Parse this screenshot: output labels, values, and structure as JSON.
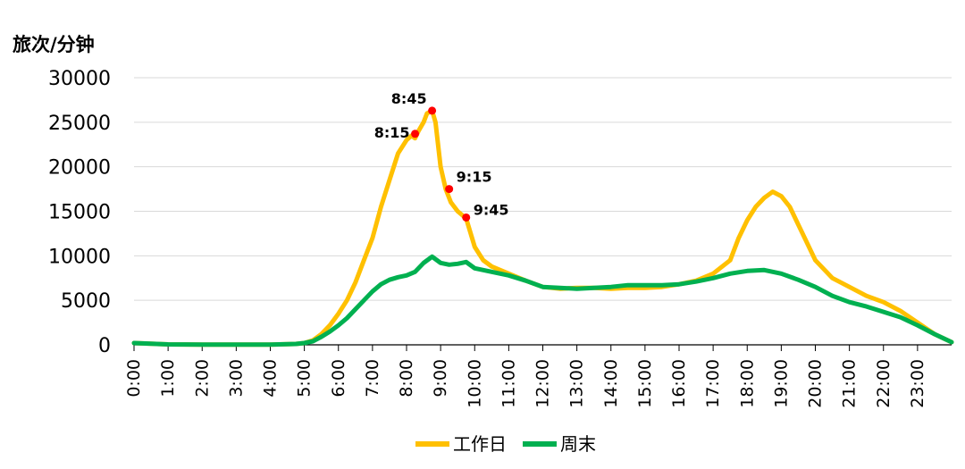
{
  "chart_data": {
    "type": "line",
    "ylabel": "旅次/分钟",
    "xlabel": "",
    "ylim": [
      0,
      30000
    ],
    "yticks": [
      0,
      5000,
      10000,
      15000,
      20000,
      25000,
      30000
    ],
    "xlim": [
      0,
      24
    ],
    "xticks": [
      "0:00",
      "1:00",
      "2:00",
      "3:00",
      "4:00",
      "5:00",
      "6:00",
      "7:00",
      "8:00",
      "9:00",
      "10:00",
      "11:00",
      "12:00",
      "13:00",
      "14:00",
      "15:00",
      "16:00",
      "17:00",
      "18:00",
      "19:00",
      "20:00",
      "21:00",
      "22:00",
      "23:00"
    ],
    "grid": true,
    "legend_position": "bottom",
    "series": [
      {
        "name": "工作日",
        "color": "#FFC000",
        "points": [
          [
            0,
            200
          ],
          [
            1,
            50
          ],
          [
            2,
            20
          ],
          [
            3,
            20
          ],
          [
            4,
            30
          ],
          [
            4.75,
            100
          ],
          [
            5,
            200
          ],
          [
            5.25,
            500
          ],
          [
            5.5,
            1200
          ],
          [
            5.75,
            2200
          ],
          [
            6,
            3500
          ],
          [
            6.25,
            5000
          ],
          [
            6.5,
            7000
          ],
          [
            6.75,
            9500
          ],
          [
            7,
            12000
          ],
          [
            7.25,
            15500
          ],
          [
            7.5,
            18500
          ],
          [
            7.75,
            21500
          ],
          [
            8,
            23000
          ],
          [
            8.15,
            23500
          ],
          [
            8.25,
            23200
          ],
          [
            8.35,
            24000
          ],
          [
            8.5,
            25000
          ],
          [
            8.6,
            26000
          ],
          [
            8.75,
            26300
          ],
          [
            8.85,
            25000
          ],
          [
            9,
            20000
          ],
          [
            9.15,
            17500
          ],
          [
            9.3,
            16000
          ],
          [
            9.5,
            15000
          ],
          [
            9.75,
            14200
          ],
          [
            10,
            11000
          ],
          [
            10.25,
            9500
          ],
          [
            10.5,
            8800
          ],
          [
            11,
            8000
          ],
          [
            11.5,
            7200
          ],
          [
            12,
            6500
          ],
          [
            12.5,
            6300
          ],
          [
            13,
            6400
          ],
          [
            13.5,
            6400
          ],
          [
            14,
            6300
          ],
          [
            14.5,
            6400
          ],
          [
            15,
            6400
          ],
          [
            15.5,
            6500
          ],
          [
            16,
            6800
          ],
          [
            16.5,
            7200
          ],
          [
            17,
            8000
          ],
          [
            17.5,
            9500
          ],
          [
            17.75,
            12000
          ],
          [
            18,
            14000
          ],
          [
            18.25,
            15500
          ],
          [
            18.5,
            16500
          ],
          [
            18.75,
            17200
          ],
          [
            19,
            16700
          ],
          [
            19.25,
            15500
          ],
          [
            19.5,
            13500
          ],
          [
            19.75,
            11500
          ],
          [
            20,
            9500
          ],
          [
            20.5,
            7500
          ],
          [
            21,
            6500
          ],
          [
            21.5,
            5500
          ],
          [
            22,
            4800
          ],
          [
            22.5,
            3800
          ],
          [
            23,
            2500
          ],
          [
            23.5,
            1200
          ],
          [
            24,
            300
          ]
        ]
      },
      {
        "name": "周末",
        "color": "#00B050",
        "points": [
          [
            0,
            200
          ],
          [
            1,
            50
          ],
          [
            2,
            20
          ],
          [
            3,
            20
          ],
          [
            4,
            30
          ],
          [
            4.75,
            100
          ],
          [
            5,
            200
          ],
          [
            5.25,
            400
          ],
          [
            5.5,
            900
          ],
          [
            5.75,
            1500
          ],
          [
            6,
            2200
          ],
          [
            6.25,
            3000
          ],
          [
            6.5,
            4000
          ],
          [
            6.75,
            5000
          ],
          [
            7,
            6000
          ],
          [
            7.25,
            6800
          ],
          [
            7.5,
            7300
          ],
          [
            7.75,
            7600
          ],
          [
            8,
            7800
          ],
          [
            8.25,
            8200
          ],
          [
            8.5,
            9200
          ],
          [
            8.75,
            9900
          ],
          [
            9,
            9200
          ],
          [
            9.25,
            9000
          ],
          [
            9.5,
            9100
          ],
          [
            9.75,
            9300
          ],
          [
            10,
            8600
          ],
          [
            10.5,
            8200
          ],
          [
            11,
            7800
          ],
          [
            11.5,
            7200
          ],
          [
            12,
            6500
          ],
          [
            12.5,
            6400
          ],
          [
            13,
            6300
          ],
          [
            13.5,
            6400
          ],
          [
            14,
            6500
          ],
          [
            14.5,
            6700
          ],
          [
            15,
            6700
          ],
          [
            15.5,
            6700
          ],
          [
            16,
            6800
          ],
          [
            16.5,
            7100
          ],
          [
            17,
            7500
          ],
          [
            17.5,
            8000
          ],
          [
            18,
            8300
          ],
          [
            18.5,
            8400
          ],
          [
            19,
            8000
          ],
          [
            19.5,
            7300
          ],
          [
            20,
            6500
          ],
          [
            20.5,
            5500
          ],
          [
            21,
            4800
          ],
          [
            21.5,
            4300
          ],
          [
            22,
            3700
          ],
          [
            22.5,
            3100
          ],
          [
            23,
            2200
          ],
          [
            23.5,
            1200
          ],
          [
            24,
            300
          ]
        ]
      }
    ],
    "annotations": [
      {
        "label": "8:15",
        "series": "工作日",
        "x": 8.25,
        "y": 23700
      },
      {
        "label": "8:45",
        "series": "工作日",
        "x": 8.75,
        "y": 26300
      },
      {
        "label": "9:15",
        "series": "工作日",
        "x": 9.25,
        "y": 17500
      },
      {
        "label": "9:45",
        "series": "工作日",
        "x": 9.75,
        "y": 14300
      }
    ],
    "marker_color": "#FF0000"
  }
}
